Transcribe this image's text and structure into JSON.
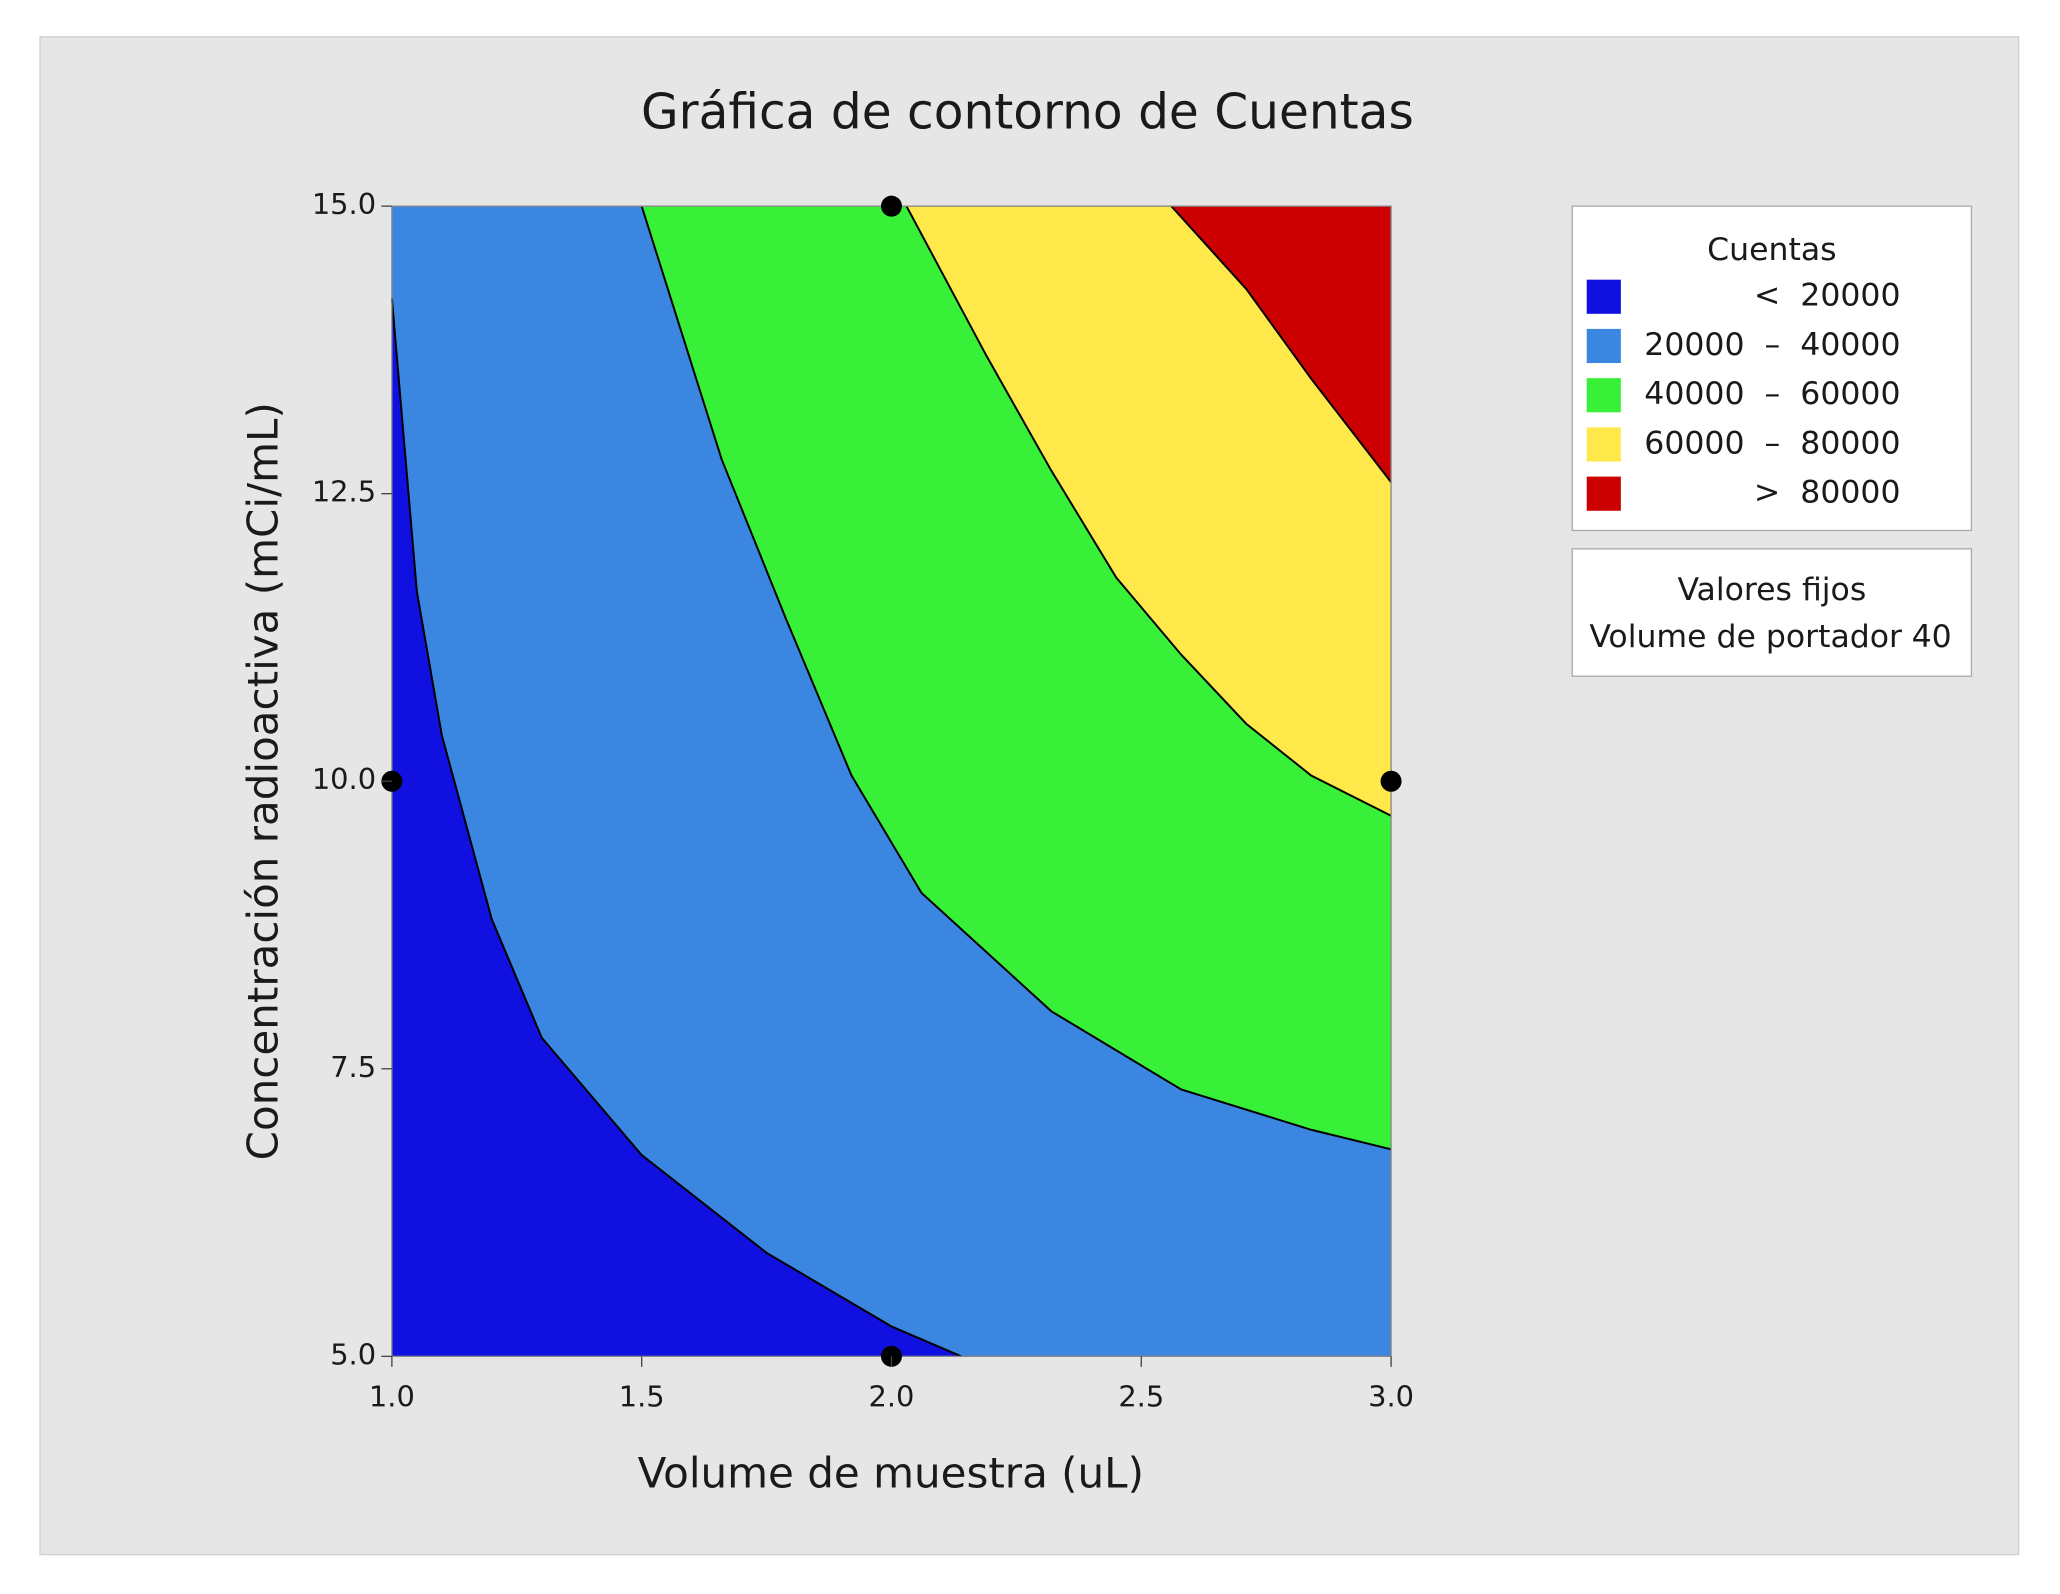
{
  "chart_data": {
    "type": "contour",
    "title": "Gráfica de contorno de Cuentas",
    "x_label": "Volume de muestra (uL)",
    "y_label": "Concentración radioactiva (mCi/mL)",
    "xlim": [
      1,
      3
    ],
    "ylim": [
      5,
      15
    ],
    "xticks": [
      {
        "value": 1,
        "label": "1.0"
      },
      {
        "value": 1.5,
        "label": "1.5"
      },
      {
        "value": 2,
        "label": "2.0"
      },
      {
        "value": 2.5,
        "label": "2.5"
      },
      {
        "value": 3,
        "label": "3.0"
      }
    ],
    "yticks": [
      {
        "value": 5,
        "label": "5.0"
      },
      7.5,
      {
        "value": 10,
        "label": "10.0"
      },
      12.5,
      {
        "value": 15,
        "label": "15.0"
      }
    ],
    "legend_title": "Cuentas",
    "bands": [
      {
        "name": "<  20000",
        "color": "#1010e0"
      },
      {
        "name": "20000  –  40000",
        "color": "#3a86e0"
      },
      {
        "name": "40000  –  60000",
        "color": "#38f038"
      },
      {
        "name": "60000  –  80000",
        "color": "#ffe84a"
      },
      {
        "name": ">  80000",
        "color": "#cc0000"
      }
    ],
    "contours": [
      {
        "level": 20000,
        "x": [
          1.0,
          1.05,
          1.1,
          1.2,
          1.3,
          1.5,
          1.75,
          2.0,
          2.14
        ],
        "y": [
          14.2,
          11.65,
          10.4,
          8.8,
          7.77,
          6.75,
          5.9,
          5.26,
          5.0
        ]
      },
      {
        "level": 40000,
        "x": [
          1.5,
          1.66,
          1.79,
          1.92,
          2.06,
          2.32,
          2.58,
          2.84,
          3.0
        ],
        "y": [
          15.0,
          12.8,
          11.4,
          10.05,
          9.03,
          8.0,
          7.32,
          6.97,
          6.8
        ]
      },
      {
        "level": 60000,
        "x": [
          2.03,
          2.19,
          2.32,
          2.45,
          2.58,
          2.71,
          2.84,
          3.0
        ],
        "y": [
          15.0,
          13.7,
          12.7,
          11.77,
          11.1,
          10.5,
          10.05,
          9.7
        ]
      },
      {
        "level": 80000,
        "x": [
          2.56,
          2.71,
          2.84,
          3.0
        ],
        "y": [
          15.0,
          14.28,
          13.5,
          12.6
        ]
      }
    ],
    "points": {
      "x": [
        1,
        2,
        2,
        3
      ],
      "y": [
        10,
        15,
        5,
        10
      ]
    },
    "fixed_values": {
      "title": "Valores fijos",
      "items": [
        {
          "name": "Volume de portador",
          "value": 40
        }
      ]
    }
  }
}
